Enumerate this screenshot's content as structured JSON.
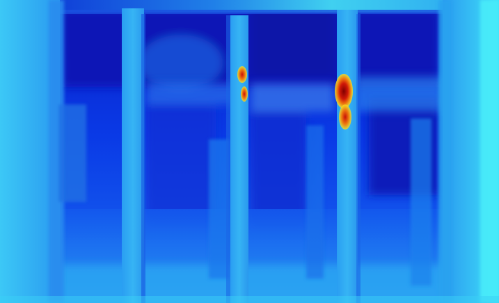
{
  "image": {
    "kind": "depth-colormap",
    "colormap": "jet",
    "palette": {
      "far": "#0010b8",
      "deep": "#0028d8",
      "mid": "#1060f0",
      "near": "#2aa8f4",
      "nearest": "#3ad6f8",
      "hot_yellow": "#f8e020",
      "hot_orange": "#f07010",
      "hot_red": "#c81008",
      "hot_dark": "#800000"
    }
  }
}
